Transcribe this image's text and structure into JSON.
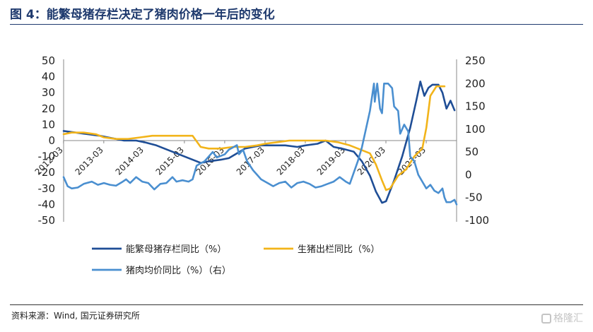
{
  "figure_title": "图 4：能繁母猪存栏决定了猪肉价格一年后的变化",
  "source_note": "资料来源：Wind, 国元证券研究所",
  "watermark": "格隆汇",
  "chart_data": {
    "type": "line",
    "left_axis": {
      "ticks": [
        "50",
        "40",
        "30",
        "20",
        "10",
        "0",
        "-10",
        "-20",
        "-30",
        "-40",
        "-50"
      ],
      "range": [
        -50,
        50
      ]
    },
    "right_axis": {
      "ticks": [
        "250",
        "200",
        "150",
        "100",
        "50",
        "0",
        "-50",
        "-100"
      ],
      "range": [
        -100,
        250
      ]
    },
    "x_ticks": [
      "2012-03",
      "2013-03",
      "2014-03",
      "2015-03",
      "2016-03",
      "2017-03",
      "2018-03",
      "2019-03",
      "2020-03",
      "2021-03"
    ],
    "x_range": [
      2012.0,
      2021.75
    ],
    "grid": false,
    "legend_position": "bottom",
    "series": [
      {
        "name": "能繁母猪存栏同比（%）",
        "axis": "left",
        "color": "#1f4e96",
        "points": [
          [
            2012.0,
            6
          ],
          [
            2012.3,
            5
          ],
          [
            2012.6,
            4
          ],
          [
            2012.9,
            3
          ],
          [
            2013.1,
            2
          ],
          [
            2013.3,
            1
          ],
          [
            2013.5,
            0
          ],
          [
            2013.8,
            0
          ],
          [
            2014.0,
            -1
          ],
          [
            2014.3,
            -3
          ],
          [
            2014.6,
            -6
          ],
          [
            2014.9,
            -9
          ],
          [
            2015.2,
            -12
          ],
          [
            2015.4,
            -14
          ],
          [
            2015.6,
            -13
          ],
          [
            2015.9,
            -12
          ],
          [
            2016.1,
            -11
          ],
          [
            2016.3,
            -8
          ],
          [
            2016.5,
            -5
          ],
          [
            2016.7,
            -4
          ],
          [
            2016.9,
            -3
          ],
          [
            2017.2,
            -3
          ],
          [
            2017.5,
            -3
          ],
          [
            2017.8,
            -4
          ],
          [
            2018.0,
            -3
          ],
          [
            2018.3,
            -2
          ],
          [
            2018.5,
            0
          ],
          [
            2018.7,
            -4
          ],
          [
            2018.9,
            -5
          ],
          [
            2019.2,
            -7
          ],
          [
            2019.4,
            -13
          ],
          [
            2019.6,
            -22
          ],
          [
            2019.75,
            -32
          ],
          [
            2019.9,
            -39
          ],
          [
            2020.0,
            -38
          ],
          [
            2020.2,
            -25
          ],
          [
            2020.4,
            -10
          ],
          [
            2020.6,
            8
          ],
          [
            2020.75,
            25
          ],
          [
            2020.85,
            37
          ],
          [
            2020.95,
            28
          ],
          [
            2021.05,
            33
          ],
          [
            2021.15,
            35
          ],
          [
            2021.3,
            35
          ],
          [
            2021.4,
            30
          ],
          [
            2021.5,
            20
          ],
          [
            2021.6,
            25
          ],
          [
            2021.7,
            19
          ]
        ]
      },
      {
        "name": "生猪出栏同比（%）",
        "axis": "left",
        "color": "#f2b41a",
        "points": [
          [
            2012.0,
            4
          ],
          [
            2012.2,
            5
          ],
          [
            2012.5,
            5
          ],
          [
            2012.8,
            4
          ],
          [
            2013.0,
            2
          ],
          [
            2013.3,
            1
          ],
          [
            2013.6,
            1
          ],
          [
            2013.9,
            2
          ],
          [
            2014.2,
            3
          ],
          [
            2014.5,
            3
          ],
          [
            2014.8,
            3
          ],
          [
            2015.0,
            3
          ],
          [
            2015.2,
            3
          ],
          [
            2015.4,
            -4
          ],
          [
            2015.6,
            -5
          ],
          [
            2015.9,
            -5
          ],
          [
            2016.2,
            -4
          ],
          [
            2016.5,
            -4
          ],
          [
            2016.8,
            -3
          ],
          [
            2017.0,
            -2
          ],
          [
            2017.3,
            -1
          ],
          [
            2017.6,
            0
          ],
          [
            2017.9,
            0
          ],
          [
            2018.2,
            0
          ],
          [
            2018.5,
            0
          ],
          [
            2018.8,
            -1
          ],
          [
            2019.1,
            -3
          ],
          [
            2019.4,
            -6
          ],
          [
            2019.6,
            -8
          ],
          [
            2019.75,
            -15
          ],
          [
            2019.9,
            -25
          ],
          [
            2020.0,
            -31
          ],
          [
            2020.1,
            -30
          ],
          [
            2020.3,
            -22
          ],
          [
            2020.5,
            -18
          ],
          [
            2020.7,
            -10
          ],
          [
            2020.9,
            -5
          ],
          [
            2021.0,
            8
          ],
          [
            2021.1,
            28
          ],
          [
            2021.25,
            34
          ],
          [
            2021.45,
            34
          ]
        ]
      },
      {
        "name": "猪肉均价同比（%）（右）",
        "axis": "right",
        "color": "#4a8fd0",
        "points": [
          [
            2012.0,
            -5
          ],
          [
            2012.1,
            -25
          ],
          [
            2012.2,
            -30
          ],
          [
            2012.35,
            -28
          ],
          [
            2012.5,
            -20
          ],
          [
            2012.7,
            -15
          ],
          [
            2012.85,
            -22
          ],
          [
            2013.0,
            -18
          ],
          [
            2013.15,
            -22
          ],
          [
            2013.3,
            -24
          ],
          [
            2013.45,
            -16
          ],
          [
            2013.55,
            -10
          ],
          [
            2013.65,
            -18
          ],
          [
            2013.8,
            -5
          ],
          [
            2013.95,
            -15
          ],
          [
            2014.1,
            -18
          ],
          [
            2014.25,
            -32
          ],
          [
            2014.4,
            -20
          ],
          [
            2014.55,
            -18
          ],
          [
            2014.7,
            -5
          ],
          [
            2014.8,
            -15
          ],
          [
            2014.95,
            -12
          ],
          [
            2015.1,
            -15
          ],
          [
            2015.2,
            -10
          ],
          [
            2015.3,
            20
          ],
          [
            2015.4,
            25
          ],
          [
            2015.5,
            30
          ],
          [
            2015.6,
            40
          ],
          [
            2015.7,
            50
          ],
          [
            2015.8,
            38
          ],
          [
            2016.0,
            45
          ],
          [
            2016.1,
            55
          ],
          [
            2016.2,
            60
          ],
          [
            2016.3,
            65
          ],
          [
            2016.35,
            45
          ],
          [
            2016.45,
            55
          ],
          [
            2016.55,
            30
          ],
          [
            2016.7,
            10
          ],
          [
            2016.8,
            0
          ],
          [
            2016.9,
            -10
          ],
          [
            2017.0,
            -15
          ],
          [
            2017.2,
            -25
          ],
          [
            2017.35,
            -18
          ],
          [
            2017.5,
            -15
          ],
          [
            2017.65,
            -28
          ],
          [
            2017.8,
            -18
          ],
          [
            2017.95,
            -15
          ],
          [
            2018.1,
            -20
          ],
          [
            2018.25,
            -28
          ],
          [
            2018.4,
            -25
          ],
          [
            2018.55,
            -20
          ],
          [
            2018.7,
            -15
          ],
          [
            2018.85,
            -5
          ],
          [
            2019.0,
            -15
          ],
          [
            2019.1,
            -20
          ],
          [
            2019.2,
            5
          ],
          [
            2019.3,
            30
          ],
          [
            2019.4,
            60
          ],
          [
            2019.5,
            100
          ],
          [
            2019.6,
            140
          ],
          [
            2019.7,
            200
          ],
          [
            2019.72,
            160
          ],
          [
            2019.78,
            200
          ],
          [
            2019.85,
            145
          ],
          [
            2019.9,
            135
          ],
          [
            2019.95,
            200
          ],
          [
            2020.05,
            200
          ],
          [
            2020.15,
            190
          ],
          [
            2020.2,
            150
          ],
          [
            2020.3,
            140
          ],
          [
            2020.35,
            90
          ],
          [
            2020.45,
            110
          ],
          [
            2020.55,
            95
          ],
          [
            2020.6,
            40
          ],
          [
            2020.7,
            30
          ],
          [
            2020.8,
            0
          ],
          [
            2020.9,
            -15
          ],
          [
            2021.0,
            -30
          ],
          [
            2021.1,
            -22
          ],
          [
            2021.2,
            -35
          ],
          [
            2021.3,
            -40
          ],
          [
            2021.4,
            -30
          ],
          [
            2021.45,
            -50
          ],
          [
            2021.5,
            -60
          ],
          [
            2021.6,
            -60
          ],
          [
            2021.7,
            -55
          ],
          [
            2021.75,
            -65
          ]
        ]
      }
    ]
  }
}
